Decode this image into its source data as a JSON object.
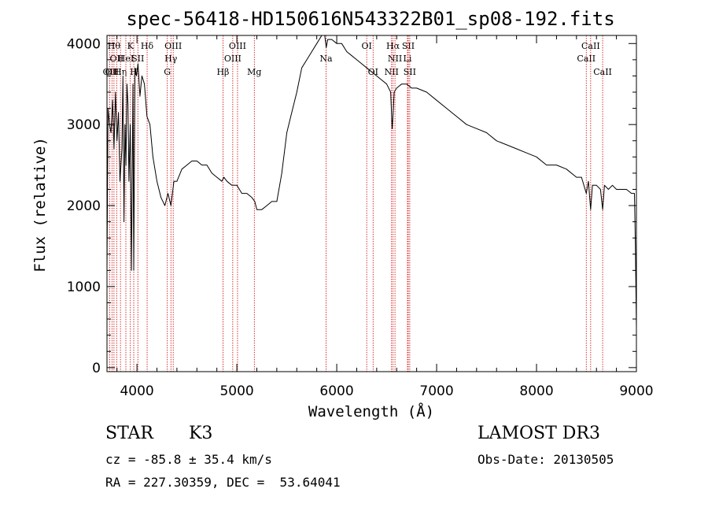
{
  "chart_data": {
    "type": "line",
    "title": "spec-56418-HD150616N543322B01_sp08-192.fits",
    "xlabel": "Wavelength (Å)",
    "ylabel": "Flux (relative)",
    "xlim": [
      3700,
      9000
    ],
    "ylim": [
      -50,
      4100
    ],
    "x_ticks": [
      4000,
      5000,
      6000,
      7000,
      8000,
      9000
    ],
    "x_tick_labels": [
      "4000",
      "5000",
      "6000",
      "7000",
      "8000",
      "9000"
    ],
    "y_ticks": [
      0,
      1000,
      2000,
      3000,
      4000
    ],
    "y_tick_labels": [
      "0",
      "1000",
      "2000",
      "3000",
      "4000"
    ],
    "grid": false,
    "line_color": "#000000",
    "marker_color": "#cc0000",
    "series": [
      {
        "x": [
          3700,
          3710,
          3725,
          3740,
          3755,
          3770,
          3785,
          3800,
          3815,
          3830,
          3850,
          3860,
          3870,
          3880,
          3890,
          3900,
          3910,
          3920,
          3933,
          3945,
          3960,
          3968,
          3980,
          3995,
          4010,
          4030,
          4050,
          4075,
          4100,
          4130,
          4160,
          4200,
          4240,
          4280,
          4310,
          4340,
          4370,
          4400,
          4450,
          4500,
          4550,
          4600,
          4650,
          4700,
          4750,
          4800,
          4850,
          4870,
          4900,
          4950,
          5000,
          5050,
          5100,
          5150,
          5180,
          5200,
          5250,
          5300,
          5350,
          5400,
          5450,
          5500,
          5550,
          5600,
          5650,
          5700,
          5750,
          5800,
          5850,
          5880,
          5895,
          5910,
          5950,
          6000,
          6050,
          6100,
          6150,
          6200,
          6250,
          6300,
          6350,
          6400,
          6450,
          6500,
          6540,
          6555,
          6563,
          6575,
          6600,
          6650,
          6700,
          6750,
          6800,
          6900,
          7000,
          7100,
          7200,
          7300,
          7400,
          7500,
          7600,
          7700,
          7800,
          7900,
          8000,
          8100,
          8200,
          8300,
          8400,
          8450,
          8498,
          8520,
          8542,
          8560,
          8600,
          8640,
          8662,
          8680,
          8720,
          8760,
          8800,
          8850,
          8900,
          8950,
          8980,
          8990,
          9000
        ],
        "y": [
          1200,
          3200,
          3000,
          2900,
          3300,
          2700,
          3400,
          2800,
          3150,
          2300,
          2700,
          3600,
          1800,
          3000,
          2500,
          3500,
          3250,
          2300,
          3000,
          1200,
          3500,
          1200,
          3700,
          3600,
          3750,
          3350,
          3600,
          3500,
          3100,
          3000,
          2600,
          2300,
          2100,
          2000,
          2150,
          2000,
          2300,
          2300,
          2450,
          2500,
          2550,
          2550,
          2500,
          2500,
          2400,
          2350,
          2300,
          2350,
          2300,
          2250,
          2250,
          2150,
          2150,
          2100,
          2050,
          1950,
          1950,
          2000,
          2050,
          2050,
          2400,
          2900,
          3150,
          3400,
          3700,
          3800,
          3900,
          4000,
          4100,
          4100,
          3950,
          4050,
          4050,
          4000,
          4000,
          3900,
          3850,
          3800,
          3750,
          3700,
          3650,
          3600,
          3550,
          3500,
          3400,
          2950,
          3100,
          3400,
          3450,
          3500,
          3500,
          3450,
          3450,
          3400,
          3300,
          3200,
          3100,
          3000,
          2950,
          2900,
          2800,
          2750,
          2700,
          2650,
          2600,
          2500,
          2500,
          2450,
          2350,
          2350,
          2150,
          2300,
          1950,
          2250,
          2250,
          2200,
          1950,
          2250,
          2200,
          2250,
          2200,
          2200,
          2200,
          2150,
          2150,
          1500,
          500
        ]
      }
    ],
    "lines": [
      {
        "w": 3727,
        "labels": [
          "OII"
        ],
        "rows": [
          3
        ]
      },
      {
        "w": 3750,
        "labels": [
          "OII"
        ],
        "rows": [
          3
        ]
      },
      {
        "w": 3770,
        "labels": [
          "Hθ"
        ],
        "rows": [
          1
        ]
      },
      {
        "w": 3797,
        "labels": [
          "OII"
        ],
        "rows": [
          2
        ]
      },
      {
        "w": 3835,
        "labels": [
          "Hη"
        ],
        "rows": [
          3
        ]
      },
      {
        "w": 3889,
        "labels": [
          "HeI"
        ],
        "rows": [
          2
        ]
      },
      {
        "w": 3934,
        "labels": [
          "K"
        ],
        "rows": [
          1
        ]
      },
      {
        "w": 3968,
        "labels": [
          "H"
        ],
        "rows": [
          3
        ]
      },
      {
        "w": 4009,
        "labels": [
          "SII"
        ],
        "rows": [
          2
        ]
      },
      {
        "w": 4102,
        "labels": [
          "Hδ"
        ],
        "rows": [
          1
        ]
      },
      {
        "w": 4304,
        "labels": [
          "G"
        ],
        "rows": [
          3
        ]
      },
      {
        "w": 4340,
        "labels": [
          "Hγ"
        ],
        "rows": [
          2
        ]
      },
      {
        "w": 4363,
        "labels": [
          "OIII"
        ],
        "rows": [
          1
        ]
      },
      {
        "w": 4861,
        "labels": [
          "Hβ"
        ],
        "rows": [
          3
        ]
      },
      {
        "w": 4959,
        "labels": [
          "OIII"
        ],
        "rows": [
          2
        ]
      },
      {
        "w": 5007,
        "labels": [
          "OIII"
        ],
        "rows": [
          1
        ]
      },
      {
        "w": 5175,
        "labels": [
          "Mg"
        ],
        "rows": [
          3
        ]
      },
      {
        "w": 5893,
        "labels": [
          "Na"
        ],
        "rows": [
          2
        ]
      },
      {
        "w": 6300,
        "labels": [
          "OI"
        ],
        "rows": [
          1
        ]
      },
      {
        "w": 6364,
        "labels": [
          "OI"
        ],
        "rows": [
          3
        ]
      },
      {
        "w": 6548,
        "labels": [
          "NII"
        ],
        "rows": [
          3
        ]
      },
      {
        "w": 6563,
        "labels": [
          "Hα"
        ],
        "rows": [
          1
        ]
      },
      {
        "w": 6583,
        "labels": [
          "NII"
        ],
        "rows": [
          2
        ]
      },
      {
        "w": 6708,
        "labels": [
          "Li"
        ],
        "rows": [
          2
        ]
      },
      {
        "w": 6716,
        "labels": [
          "SII"
        ],
        "rows": [
          1
        ]
      },
      {
        "w": 6731,
        "labels": [
          "SII"
        ],
        "rows": [
          3
        ]
      },
      {
        "w": 8498,
        "labels": [
          "CaII"
        ],
        "rows": [
          2
        ]
      },
      {
        "w": 8542,
        "labels": [
          "CaII"
        ],
        "rows": [
          1
        ]
      },
      {
        "w": 8662,
        "labels": [
          "CaII"
        ],
        "rows": [
          3
        ]
      }
    ]
  },
  "info": {
    "object_class": "STAR",
    "subclass": "K3",
    "survey": "LAMOST DR3",
    "cz_text": "cz = -85.8 ± 35.4 km/s",
    "obs_date_text": "Obs-Date: 20130505",
    "radec_text": "RA = 227.30359, DEC =  53.64041"
  }
}
